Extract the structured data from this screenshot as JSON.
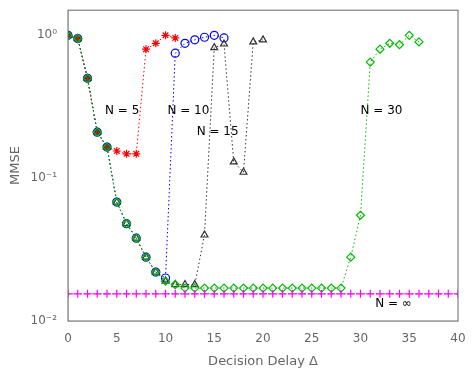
{
  "chart_data": {
    "type": "line",
    "xlabel": "Decision Delay Δ",
    "ylabel": "MMSE",
    "log": "y",
    "grid": false,
    "xlim": [
      0,
      40
    ],
    "xticks": [
      0,
      5,
      10,
      15,
      20,
      25,
      30,
      35,
      40
    ],
    "ylim": [
      0.01,
      1.5
    ],
    "yticks": [
      {
        "value": 0.01,
        "label": "10⁻²"
      },
      {
        "value": 0.1,
        "label": "10⁻¹"
      },
      {
        "value": 1,
        "label": "10⁰"
      }
    ],
    "series": [
      {
        "color": "#ff00ff",
        "marker": "plus",
        "line_style": "dotted",
        "x": [
          0,
          1,
          2,
          3,
          4,
          5,
          6,
          7,
          8,
          9,
          10,
          11,
          12,
          13,
          14,
          15,
          16,
          17,
          18,
          19,
          20,
          21,
          22,
          23,
          24,
          25,
          26,
          27,
          28,
          29,
          30,
          31,
          32,
          33,
          34,
          35,
          36,
          37,
          38,
          39,
          40
        ],
        "values": [
          0.0155,
          0.0155,
          0.0155,
          0.0155,
          0.0155,
          0.0155,
          0.0155,
          0.0155,
          0.0155,
          0.0155,
          0.0155,
          0.0155,
          0.0155,
          0.0155,
          0.0155,
          0.0155,
          0.0155,
          0.0155,
          0.0155,
          0.0155,
          0.0155,
          0.0155,
          0.0155,
          0.0155,
          0.0155,
          0.0155,
          0.0155,
          0.0155,
          0.0155,
          0.0155,
          0.0155,
          0.0155,
          0.0155,
          0.0155,
          0.0155,
          0.0155,
          0.0155,
          0.0155,
          0.0155,
          0.0155,
          0.0155
        ]
      },
      {
        "color": "#00bb00",
        "marker": "diamond",
        "line_style": "dotted",
        "x": [
          0,
          1,
          2,
          3,
          4,
          5,
          6,
          7,
          8,
          9,
          10,
          11,
          12,
          13,
          14,
          15,
          16,
          17,
          18,
          19,
          20,
          21,
          22,
          23,
          24,
          25,
          26,
          27,
          28,
          29,
          30,
          31,
          32,
          33,
          34,
          35,
          36
        ],
        "values": [
          1.0,
          0.95,
          0.5,
          0.21,
          0.165,
          0.068,
          0.048,
          0.038,
          0.028,
          0.022,
          0.019,
          0.018,
          0.017,
          0.017,
          0.017,
          0.017,
          0.017,
          0.017,
          0.017,
          0.017,
          0.017,
          0.017,
          0.017,
          0.017,
          0.017,
          0.017,
          0.017,
          0.017,
          0.017,
          0.028,
          0.055,
          0.65,
          0.8,
          0.88,
          0.86,
          1.0,
          0.9
        ]
      },
      {
        "color": "#333333",
        "marker": "triangle",
        "line_style": "dotted",
        "x": [
          0,
          1,
          2,
          3,
          4,
          5,
          6,
          7,
          8,
          9,
          10,
          11,
          12,
          13,
          14,
          15,
          16,
          17,
          18,
          19,
          20
        ],
        "values": [
          1.0,
          0.95,
          0.5,
          0.21,
          0.165,
          0.068,
          0.048,
          0.038,
          0.028,
          0.022,
          0.019,
          0.018,
          0.018,
          0.018,
          0.04,
          0.82,
          0.87,
          0.13,
          0.11,
          0.9,
          0.93
        ]
      },
      {
        "color": "#0000ff",
        "marker": "circle",
        "line_style": "dotted",
        "x": [
          0,
          1,
          2,
          3,
          4,
          5,
          6,
          7,
          8,
          9,
          10,
          11,
          12,
          13,
          14,
          15,
          16
        ],
        "values": [
          1.0,
          0.95,
          0.5,
          0.21,
          0.165,
          0.068,
          0.048,
          0.038,
          0.028,
          0.022,
          0.02,
          0.75,
          0.88,
          0.93,
          0.97,
          1.0,
          0.96
        ]
      },
      {
        "color": "#ff0000",
        "marker": "star",
        "line_style": "dotted",
        "x": [
          0,
          1,
          2,
          3,
          4,
          5,
          6,
          7,
          8,
          9,
          10,
          11
        ],
        "values": [
          1.0,
          0.95,
          0.5,
          0.21,
          0.165,
          0.155,
          0.148,
          0.148,
          0.8,
          0.88,
          1.0,
          0.96
        ]
      }
    ],
    "annotations": [
      {
        "text": "N = 5",
        "x": 3.8,
        "y": 0.28
      },
      {
        "text": "N = 10",
        "x": 10.2,
        "y": 0.28
      },
      {
        "text": "N = 15",
        "x": 13.2,
        "y": 0.2
      },
      {
        "text": "N = 30",
        "x": 30.0,
        "y": 0.28
      },
      {
        "text": "N = ∞",
        "x": 31.5,
        "y": 0.0125
      }
    ]
  }
}
